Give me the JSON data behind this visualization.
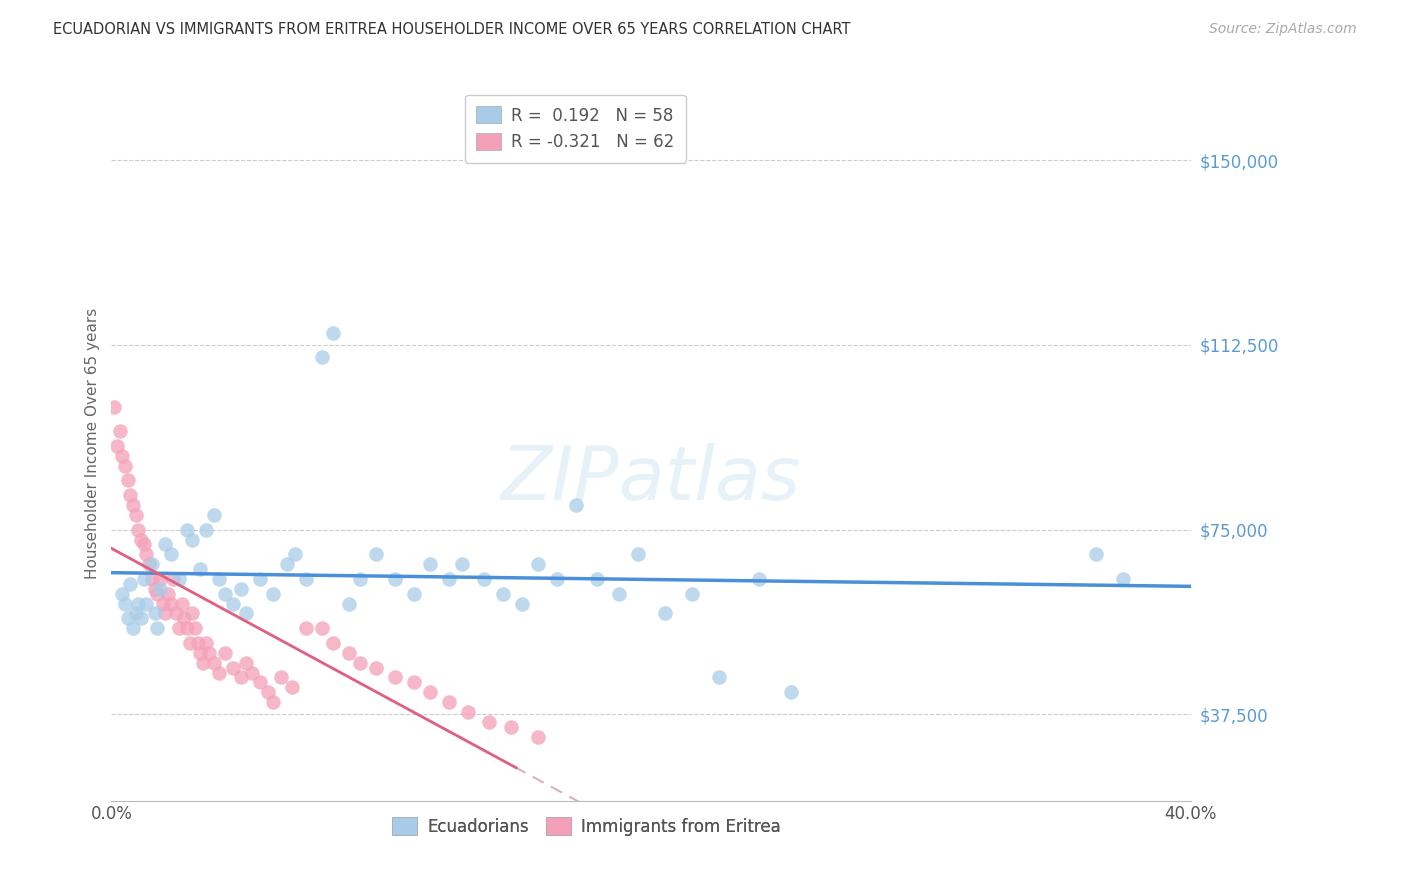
{
  "title": "ECUADORIAN VS IMMIGRANTS FROM ERITREA HOUSEHOLDER INCOME OVER 65 YEARS CORRELATION CHART",
  "source": "Source: ZipAtlas.com",
  "ylabel": "Householder Income Over 65 years",
  "xlim": [
    0.0,
    0.4
  ],
  "ylim": [
    20000,
    165000
  ],
  "yticks": [
    37500,
    75000,
    112500,
    150000
  ],
  "ytick_labels": [
    "$37,500",
    "$75,000",
    "$112,500",
    "$150,000"
  ],
  "xticks": [
    0.0,
    0.05,
    0.1,
    0.15,
    0.2,
    0.25,
    0.3,
    0.35,
    0.4
  ],
  "xtick_labels": [
    "0.0%",
    "",
    "",
    "",
    "",
    "",
    "",
    "",
    "40.0%"
  ],
  "legend_r1_label": "R =  0.192   N = 58",
  "legend_r2_label": "R = -0.321   N = 62",
  "color_blue": "#a8cce8",
  "color_pink": "#f4a0b8",
  "color_blue_line": "#4a90d9",
  "color_pink_line": "#e06080",
  "color_pink_dash": "#d8b0be",
  "watermark": "ZIPatlas",
  "ecuadorians_x": [
    0.004,
    0.005,
    0.006,
    0.007,
    0.008,
    0.009,
    0.01,
    0.011,
    0.012,
    0.013,
    0.015,
    0.016,
    0.017,
    0.018,
    0.02,
    0.022,
    0.025,
    0.028,
    0.03,
    0.033,
    0.035,
    0.038,
    0.04,
    0.042,
    0.045,
    0.048,
    0.05,
    0.055,
    0.06,
    0.065,
    0.068,
    0.072,
    0.078,
    0.082,
    0.088,
    0.092,
    0.098,
    0.105,
    0.112,
    0.118,
    0.125,
    0.13,
    0.138,
    0.145,
    0.152,
    0.158,
    0.165,
    0.172,
    0.18,
    0.188,
    0.195,
    0.205,
    0.215,
    0.225,
    0.24,
    0.252,
    0.365,
    0.375
  ],
  "ecuadorians_y": [
    62000,
    60000,
    57000,
    64000,
    55000,
    58000,
    60000,
    57000,
    65000,
    60000,
    68000,
    58000,
    55000,
    63000,
    72000,
    70000,
    65000,
    75000,
    73000,
    67000,
    75000,
    78000,
    65000,
    62000,
    60000,
    63000,
    58000,
    65000,
    62000,
    68000,
    70000,
    65000,
    110000,
    115000,
    60000,
    65000,
    70000,
    65000,
    62000,
    68000,
    65000,
    68000,
    65000,
    62000,
    60000,
    68000,
    65000,
    80000,
    65000,
    62000,
    70000,
    58000,
    62000,
    45000,
    65000,
    42000,
    70000,
    65000
  ],
  "eritrea_x": [
    0.001,
    0.002,
    0.003,
    0.004,
    0.005,
    0.006,
    0.007,
    0.008,
    0.009,
    0.01,
    0.011,
    0.012,
    0.013,
    0.014,
    0.015,
    0.016,
    0.017,
    0.018,
    0.019,
    0.02,
    0.021,
    0.022,
    0.023,
    0.024,
    0.025,
    0.026,
    0.027,
    0.028,
    0.029,
    0.03,
    0.031,
    0.032,
    0.033,
    0.034,
    0.035,
    0.036,
    0.038,
    0.04,
    0.042,
    0.045,
    0.048,
    0.05,
    0.052,
    0.055,
    0.058,
    0.06,
    0.063,
    0.067,
    0.072,
    0.078,
    0.082,
    0.088,
    0.092,
    0.098,
    0.105,
    0.112,
    0.118,
    0.125,
    0.132,
    0.14,
    0.148,
    0.158
  ],
  "eritrea_y": [
    100000,
    92000,
    95000,
    90000,
    88000,
    85000,
    82000,
    80000,
    78000,
    75000,
    73000,
    72000,
    70000,
    68000,
    65000,
    63000,
    62000,
    65000,
    60000,
    58000,
    62000,
    60000,
    65000,
    58000,
    55000,
    60000,
    57000,
    55000,
    52000,
    58000,
    55000,
    52000,
    50000,
    48000,
    52000,
    50000,
    48000,
    46000,
    50000,
    47000,
    45000,
    48000,
    46000,
    44000,
    42000,
    40000,
    45000,
    43000,
    55000,
    55000,
    52000,
    50000,
    48000,
    47000,
    45000,
    44000,
    42000,
    40000,
    38000,
    36000,
    35000,
    33000
  ]
}
